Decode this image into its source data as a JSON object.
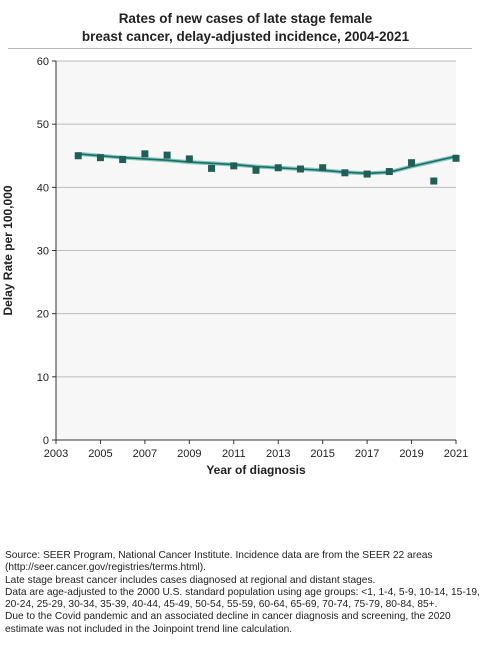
{
  "title_lines": [
    "Rates of new cases of late stage female",
    "breast cancer, delay-adjusted incidence, 2004-2021"
  ],
  "footnotes": [
    "Source: SEER Program, National Cancer Institute. Incidence data are from the SEER 22 areas (http://seer.cancer.gov/registries/terms.html).",
    "Late stage breast cancer includes cases diagnosed at regional and distant stages.",
    "Data are age-adjusted to the 2000 U.S. standard population using age groups: <1, 1-4, 5-9, 10-14, 15-19, 20-24, 25-29, 30-34, 35-39, 40-44, 45-49, 50-54, 55-59, 60-64, 65-69, 70-74, 75-79, 80-84, 85+.",
    "Due to the Covid pandemic and an associated decline in cancer diagnosis and screening, the 2020 estimate was not included in the Joinpoint trend line calculation."
  ],
  "colors": {
    "marker": "#1f5f57",
    "trend_light": "#84c8c0",
    "trend_dark": "#1f6b62",
    "plot_bg": "#f7f7f7",
    "grid": "#bdbdbd"
  },
  "chart_data": {
    "type": "scatter",
    "title": "Rates of new cases of late stage female breast cancer, delay-adjusted incidence, 2004-2021",
    "xlabel": "Year of diagnosis",
    "ylabel": "Delay Rate per 100,000",
    "xlim": [
      2003,
      2021
    ],
    "ylim": [
      0,
      60
    ],
    "xticks": [
      "2003",
      "2005",
      "2007",
      "2009",
      "2011",
      "2013",
      "2015",
      "2017",
      "2019",
      "2021"
    ],
    "yticks": [
      "0",
      "10",
      "20",
      "30",
      "40",
      "50",
      "60"
    ],
    "grid": "horizontal",
    "series": [
      {
        "kind": "observed",
        "x": [
          2004,
          2005,
          2006,
          2007,
          2008,
          2009,
          2010,
          2011,
          2012,
          2013,
          2014,
          2015,
          2016,
          2017,
          2018,
          2019,
          2020,
          2021
        ],
        "y": [
          45.0,
          44.7,
          44.4,
          45.3,
          45.1,
          44.5,
          43.0,
          43.4,
          42.7,
          43.1,
          42.9,
          43.1,
          42.3,
          42.1,
          42.5,
          43.9,
          41.0,
          44.6
        ]
      },
      {
        "kind": "trend",
        "x": [
          2004,
          2005,
          2006,
          2007,
          2008,
          2009,
          2010,
          2011,
          2012,
          2013,
          2014,
          2015,
          2016,
          2017,
          2018,
          2019,
          2020,
          2021
        ],
        "y": [
          45.3,
          45.0,
          44.7,
          44.5,
          44.3,
          44.0,
          43.8,
          43.6,
          43.3,
          43.1,
          42.9,
          42.7,
          42.4,
          42.2,
          42.4,
          43.3,
          44.1,
          44.9
        ]
      }
    ]
  }
}
